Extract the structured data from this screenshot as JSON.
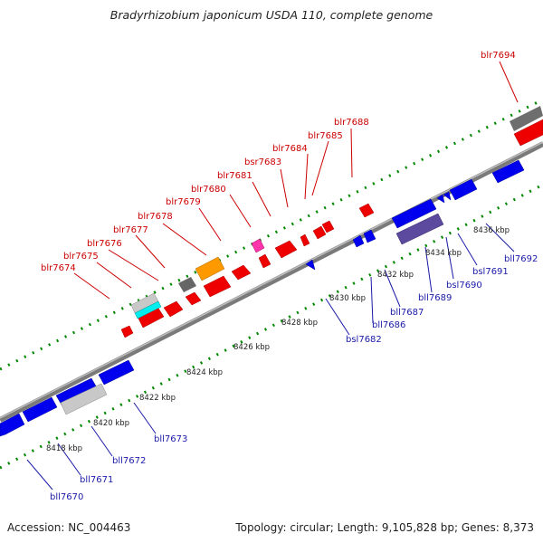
{
  "title": "Bradyrhizobium japonicum USDA 110, complete genome",
  "footer": {
    "accession": "Accession: NC_004463",
    "summary": "Topology: circular; Length: 9,105,828 bp; Genes: 8,373"
  },
  "colors": {
    "forward_gene": "#ff0000",
    "reverse_gene": "#0000ee",
    "backbone": "#888888",
    "tick": "#008800",
    "label_top": "#cc0000",
    "label_bottom": "#1a1aa8"
  },
  "kbp_labels": [
    "8418 kbp",
    "8420 kbp",
    "8422 kbp",
    "8424 kbp",
    "8426 kbp",
    "8428 kbp",
    "8430 kbp",
    "8432 kbp",
    "8434 kbp",
    "8436 kbp"
  ],
  "top_labels": [
    "blr7674",
    "blr7675",
    "blr7676",
    "blr7677",
    "blr7678",
    "blr7679",
    "blr7680",
    "blr7681",
    "bsr7683",
    "blr7684",
    "blr7685",
    "blr7688",
    "blr7694"
  ],
  "bottom_labels": [
    "bll7670",
    "bll7671",
    "bll7672",
    "bll7673",
    "bsl7682",
    "bll7686",
    "bll7687",
    "bll7689",
    "bsl7690",
    "bsl7691",
    "bll7692"
  ]
}
